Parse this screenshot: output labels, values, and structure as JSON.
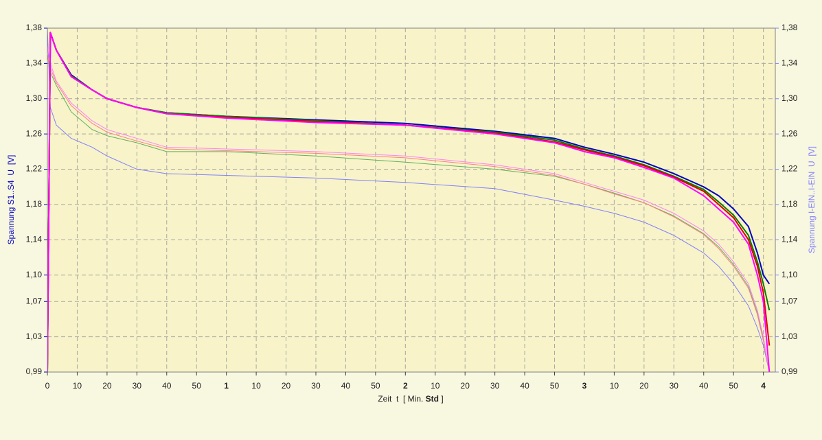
{
  "chart_data": {
    "type": "line",
    "x_label_parts": [
      "Zeit  t  [ Min. ",
      "Std",
      " ]"
    ],
    "y_label": "Spannung S1..S4  U  [V]",
    "y2_label": "Spannung I-EIN..I-EIN  U  [V]",
    "x": [
      0,
      1,
      3,
      8,
      15,
      20,
      30,
      40,
      60,
      90,
      120,
      150,
      170,
      180,
      190,
      200,
      210,
      220,
      225,
      230,
      235,
      238,
      240,
      242
    ],
    "xlim": [
      0,
      244
    ],
    "xticks": [
      0,
      10,
      20,
      30,
      40,
      50,
      {
        "value": 60,
        "label": "1"
      },
      {
        "value": 70,
        "label": "10"
      },
      {
        "value": 80,
        "label": "20"
      },
      {
        "value": 90,
        "label": "30"
      },
      {
        "value": 100,
        "label": "40"
      },
      {
        "value": 110,
        "label": "50"
      },
      {
        "value": 120,
        "label": "2"
      },
      {
        "value": 130,
        "label": "10"
      },
      {
        "value": 140,
        "label": "20"
      },
      {
        "value": 150,
        "label": "30"
      },
      {
        "value": 160,
        "label": "40"
      },
      {
        "value": 170,
        "label": "50"
      },
      {
        "value": 180,
        "label": "3"
      },
      {
        "value": 190,
        "label": "10"
      },
      {
        "value": 200,
        "label": "20"
      },
      {
        "value": 210,
        "label": "30"
      },
      {
        "value": 220,
        "label": "40"
      },
      {
        "value": 230,
        "label": "50"
      },
      {
        "value": 240,
        "label": "4"
      }
    ],
    "ylim": [
      0.99,
      1.38
    ],
    "yticks": [
      {
        "value": 0.99,
        "label": "0,99"
      },
      {
        "value": 1.03,
        "label": "1,03"
      },
      {
        "value": 1.07,
        "label": "1,07"
      },
      {
        "value": 1.1,
        "label": "1,10"
      },
      {
        "value": 1.14,
        "label": "1,14"
      },
      {
        "value": 1.18,
        "label": "1,18"
      },
      {
        "value": 1.22,
        "label": "1,22"
      },
      {
        "value": 1.26,
        "label": "1,26"
      },
      {
        "value": 1.3,
        "label": "1,30"
      },
      {
        "value": 1.34,
        "label": "1,34"
      },
      {
        "value": 1.38,
        "label": "1,38"
      }
    ],
    "y2lim": [
      0.99,
      1.38
    ],
    "y2ticks": [
      {
        "value": 0.99,
        "label": "0,99"
      },
      {
        "value": 1.03,
        "label": "1,03"
      },
      {
        "value": 1.07,
        "label": "1,07"
      },
      {
        "value": 1.1,
        "label": "1,10"
      },
      {
        "value": 1.14,
        "label": "1,14"
      },
      {
        "value": 1.18,
        "label": "1,18"
      },
      {
        "value": 1.22,
        "label": "1,22"
      },
      {
        "value": 1.26,
        "label": "1,26"
      },
      {
        "value": 1.3,
        "label": "1,30"
      },
      {
        "value": 1.34,
        "label": "1,34"
      },
      {
        "value": 1.38,
        "label": "1,38"
      }
    ],
    "grid": true,
    "series": [
      {
        "color": "#8080ff",
        "line_width": 1,
        "axis": "y2",
        "values": [
          1.38,
          1.29,
          1.27,
          1.255,
          1.245,
          1.235,
          1.22,
          1.215,
          1.213,
          1.21,
          1.205,
          1.198,
          1.185,
          1.178,
          1.17,
          1.16,
          1.145,
          1.125,
          1.11,
          1.09,
          1.065,
          1.04,
          1.02,
          0.99
        ]
      },
      {
        "color": "#60b060",
        "line_width": 1,
        "axis": "y2",
        "values": [
          1.35,
          1.33,
          1.315,
          1.285,
          1.265,
          1.258,
          1.25,
          1.24,
          1.24,
          1.235,
          1.228,
          1.22,
          1.212,
          1.203,
          1.193,
          1.182,
          1.167,
          1.147,
          1.132,
          1.112,
          1.087,
          1.057,
          1.027,
          0.99
        ]
      },
      {
        "color": "#ff8080",
        "line_width": 1,
        "axis": "y2",
        "values": [
          1.35,
          1.335,
          1.318,
          1.292,
          1.272,
          1.262,
          1.252,
          1.243,
          1.241,
          1.238,
          1.233,
          1.223,
          1.213,
          1.203,
          1.192,
          1.182,
          1.166,
          1.146,
          1.13,
          1.11,
          1.085,
          1.055,
          1.025,
          0.99
        ]
      },
      {
        "color": "#ff80ff",
        "line_width": 1,
        "axis": "y2",
        "values": [
          1.36,
          1.34,
          1.32,
          1.295,
          1.275,
          1.265,
          1.255,
          1.245,
          1.243,
          1.24,
          1.235,
          1.225,
          1.215,
          1.205,
          1.195,
          1.185,
          1.17,
          1.15,
          1.135,
          1.115,
          1.09,
          1.06,
          1.03,
          0.99
        ]
      },
      {
        "color": "#0000c0",
        "line_width": 2,
        "values": [
          0.99,
          1.375,
          1.355,
          1.327,
          1.31,
          1.3,
          1.29,
          1.284,
          1.28,
          1.276,
          1.272,
          1.263,
          1.255,
          1.245,
          1.237,
          1.228,
          1.215,
          1.2,
          1.19,
          1.175,
          1.155,
          1.125,
          1.1,
          1.09
        ]
      },
      {
        "color": "#008000",
        "line_width": 2,
        "values": [
          0.99,
          1.375,
          1.355,
          1.326,
          1.31,
          1.3,
          1.29,
          1.284,
          1.28,
          1.275,
          1.27,
          1.262,
          1.253,
          1.243,
          1.235,
          1.225,
          1.212,
          1.197,
          1.183,
          1.168,
          1.145,
          1.115,
          1.09,
          1.06
        ]
      },
      {
        "color": "#e00000",
        "line_width": 2,
        "values": [
          0.99,
          1.375,
          1.355,
          1.325,
          1.31,
          1.3,
          1.29,
          1.283,
          1.279,
          1.274,
          1.27,
          1.261,
          1.251,
          1.242,
          1.234,
          1.224,
          1.211,
          1.195,
          1.18,
          1.165,
          1.14,
          1.11,
          1.08,
          1.02
        ]
      },
      {
        "color": "#ff00ff",
        "line_width": 2,
        "values": [
          0.99,
          1.375,
          1.355,
          1.325,
          1.31,
          1.3,
          1.29,
          1.283,
          1.278,
          1.273,
          1.27,
          1.26,
          1.25,
          1.24,
          1.233,
          1.222,
          1.21,
          1.19,
          1.175,
          1.16,
          1.135,
          1.1,
          1.07,
          0.99
        ]
      }
    ]
  }
}
